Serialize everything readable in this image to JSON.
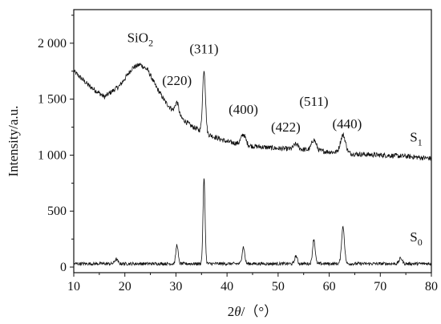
{
  "chart_data": {
    "type": "line",
    "xlabel_prefix": "2",
    "xlabel_theta": "θ",
    "xlabel_suffix": "/（°）",
    "ylabel": "Intensity/a.u.",
    "xlim": [
      10,
      80
    ],
    "ylim": [
      -50,
      2300
    ],
    "x_ticks": [
      10,
      20,
      30,
      40,
      50,
      60,
      70,
      80
    ],
    "y_ticks": [
      0,
      500,
      1000,
      1500,
      2000
    ],
    "y_tick_labels": [
      "0",
      "500",
      "1 000",
      "1 500",
      "2 000"
    ],
    "grid": false,
    "series": [
      {
        "name_main": "S",
        "name_sub": "1",
        "baseline": [
          [
            10,
            1750
          ],
          [
            13,
            1620
          ],
          [
            16,
            1520
          ],
          [
            19,
            1620
          ],
          [
            21.5,
            1780
          ],
          [
            23,
            1810
          ],
          [
            24.5,
            1760
          ],
          [
            26,
            1620
          ],
          [
            28,
            1470
          ],
          [
            30,
            1370
          ],
          [
            33,
            1260
          ],
          [
            36,
            1190
          ],
          [
            40,
            1120
          ],
          [
            45,
            1080
          ],
          [
            50,
            1060
          ],
          [
            55,
            1050
          ],
          [
            60,
            1030
          ],
          [
            65,
            1010
          ],
          [
            70,
            1000
          ],
          [
            75,
            990
          ],
          [
            80,
            970
          ]
        ],
        "peaks": [
          [
            30.2,
            110,
            0.35
          ],
          [
            35.5,
            560,
            0.28
          ],
          [
            43.2,
            90,
            0.45
          ],
          [
            53.5,
            45,
            0.45
          ],
          [
            57.0,
            95,
            0.45
          ],
          [
            62.7,
            160,
            0.5
          ]
        ],
        "noise": 22,
        "color": "#111111"
      },
      {
        "name_main": "S",
        "name_sub": "0",
        "baseline": [
          [
            10,
            30
          ],
          [
            80,
            30
          ]
        ],
        "peaks": [
          [
            18.3,
            40,
            0.3
          ],
          [
            30.2,
            170,
            0.22
          ],
          [
            35.5,
            760,
            0.2
          ],
          [
            43.2,
            150,
            0.25
          ],
          [
            53.5,
            70,
            0.25
          ],
          [
            57.0,
            220,
            0.25
          ],
          [
            62.7,
            330,
            0.28
          ],
          [
            74.0,
            50,
            0.3
          ]
        ],
        "noise": 14,
        "color": "#111111"
      }
    ],
    "annotations": [
      {
        "main": "SiO",
        "sub": "2",
        "x": 23,
        "y": 2010
      },
      {
        "main": "(311)",
        "x": 35.5,
        "y": 1910
      },
      {
        "main": "(220)",
        "x": 30.2,
        "y": 1625
      },
      {
        "main": "(400)",
        "x": 43.2,
        "y": 1370
      },
      {
        "main": "(511)",
        "x": 57.0,
        "y": 1440
      },
      {
        "main": "(422)",
        "x": 51.5,
        "y": 1210
      },
      {
        "main": "(440)",
        "x": 63.5,
        "y": 1240
      }
    ],
    "series_labels": [
      {
        "series": 0,
        "x": 75.8,
        "y": 1120
      },
      {
        "series": 1,
        "x": 75.8,
        "y": 230
      }
    ]
  }
}
